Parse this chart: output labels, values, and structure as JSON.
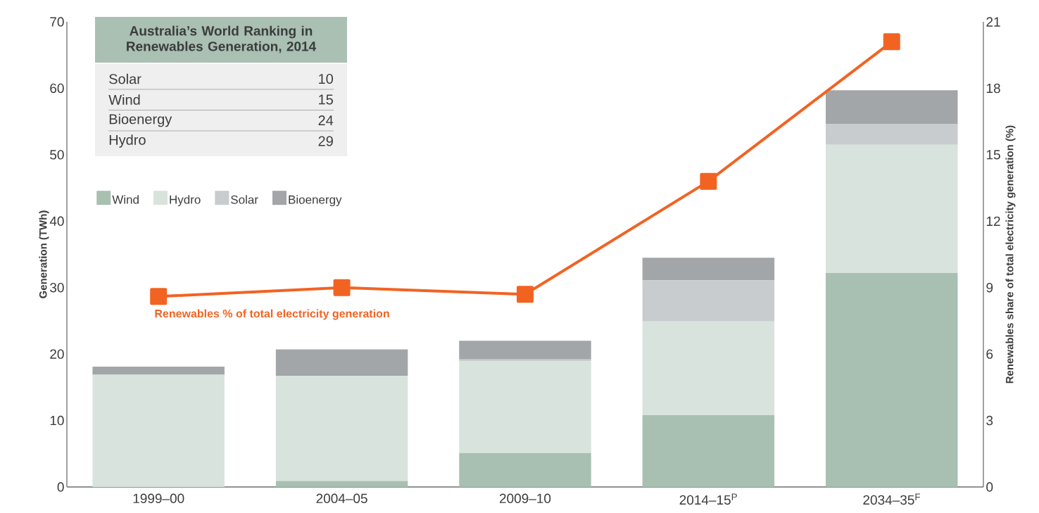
{
  "chart_data": {
    "type": "bar",
    "stacked": true,
    "categories": [
      "1999–00",
      "2004–05",
      "2009–10",
      "2014–15$^{P}$",
      "2034–35$^{F}$"
    ],
    "ylabel": "Generation (TWh)",
    "y2label": "Renewables share of total electricity generation (%)",
    "ylim": [
      0,
      70
    ],
    "yticks": [
      0,
      10,
      20,
      30,
      40,
      50,
      60,
      70
    ],
    "y2lim": [
      0,
      21
    ],
    "y2ticks": [
      0,
      3,
      6,
      9,
      12,
      15,
      18,
      21
    ],
    "legend": "top left",
    "series": [
      {
        "name": "Wind",
        "color": "#a8c0b2",
        "values": [
          0,
          0.9,
          5.1,
          10.8,
          32.2
        ]
      },
      {
        "name": "Hydro",
        "color": "#d9e3de",
        "values": [
          16.9,
          15.8,
          13.8,
          14.1,
          19.3
        ]
      },
      {
        "name": "Solar",
        "color": "#c8ccce",
        "values": [
          0,
          0,
          0.3,
          6.2,
          3.1
        ]
      },
      {
        "name": "Bioenergy",
        "color": "#a3a6a8",
        "values": [
          1.2,
          4.0,
          2.8,
          3.4,
          5.1
        ]
      },
      {
        "name": "Renewables % of total electricity generation",
        "type": "line",
        "axis": "y2",
        "marker": "square",
        "color": "#f26322",
        "values": [
          8.6,
          9.0,
          8.7,
          13.8,
          20.1
        ]
      }
    ],
    "annotations": [
      "Australia’s World Ranking in Renewables Generation, 2014",
      "Solar",
      "10",
      "Wind",
      "15",
      "Bioenergy",
      "24",
      "Hydro",
      "29"
    ]
  }
}
